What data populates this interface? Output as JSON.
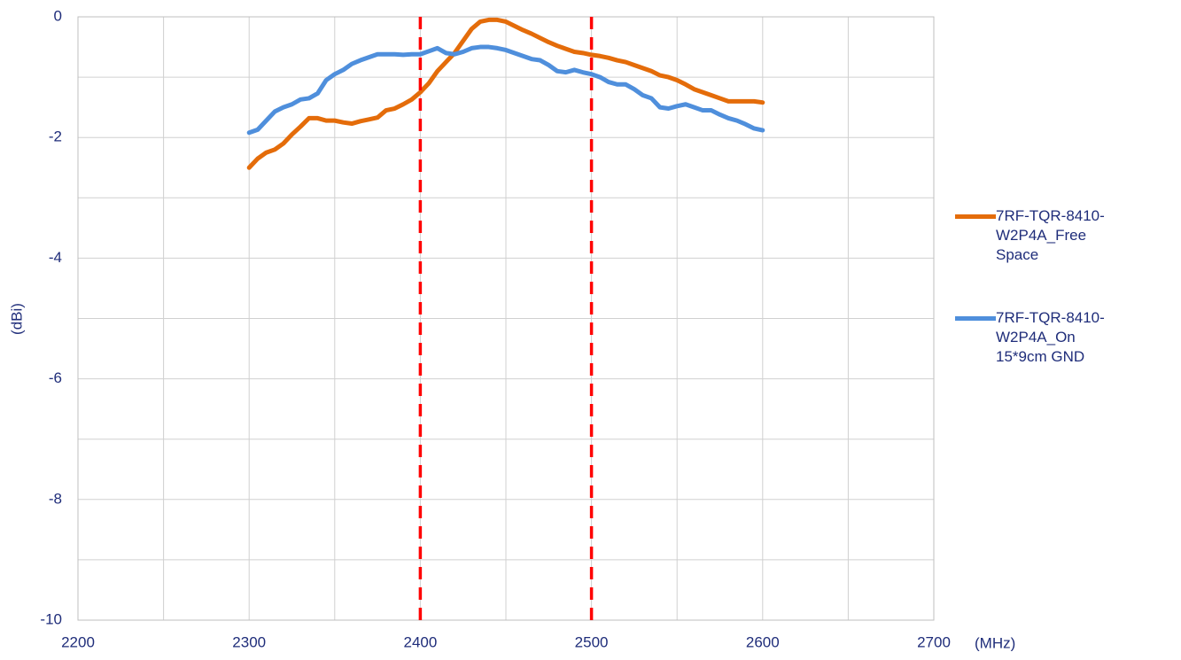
{
  "chart_data": {
    "type": "line",
    "x_label": "(MHz)",
    "y_label": "(dBi)",
    "x": [
      2300,
      2305,
      2310,
      2315,
      2320,
      2325,
      2330,
      2335,
      2340,
      2345,
      2350,
      2355,
      2360,
      2365,
      2370,
      2375,
      2380,
      2385,
      2390,
      2395,
      2400,
      2405,
      2410,
      2415,
      2420,
      2425,
      2430,
      2435,
      2440,
      2445,
      2450,
      2455,
      2460,
      2465,
      2470,
      2475,
      2480,
      2485,
      2490,
      2495,
      2500,
      2505,
      2510,
      2515,
      2520,
      2525,
      2530,
      2535,
      2540,
      2545,
      2550,
      2555,
      2560,
      2565,
      2570,
      2575,
      2580,
      2585,
      2590,
      2595,
      2600
    ],
    "series": [
      {
        "name": "7RF-TQR-8410-W2P4A_Free Space",
        "color": "#e46c0a",
        "values": [
          -2.5,
          -2.35,
          -2.25,
          -2.2,
          -2.1,
          -1.95,
          -1.82,
          -1.68,
          -1.68,
          -1.72,
          -1.72,
          -1.75,
          -1.77,
          -1.73,
          -1.7,
          -1.67,
          -1.55,
          -1.52,
          -1.45,
          -1.37,
          -1.25,
          -1.1,
          -0.9,
          -0.75,
          -0.6,
          -0.4,
          -0.2,
          -0.08,
          -0.05,
          -0.05,
          -0.08,
          -0.15,
          -0.22,
          -0.28,
          -0.35,
          -0.42,
          -0.48,
          -0.53,
          -0.58,
          -0.6,
          -0.63,
          -0.65,
          -0.68,
          -0.72,
          -0.75,
          -0.8,
          -0.85,
          -0.9,
          -0.97,
          -1.0,
          -1.05,
          -1.12,
          -1.2,
          -1.25,
          -1.3,
          -1.35,
          -1.4,
          -1.4,
          -1.4,
          -1.4,
          -1.42
        ]
      },
      {
        "name": "7RF-TQR-8410-W2P4A_On 15*9cm GND",
        "color": "#4f8fdc",
        "values": [
          -1.92,
          -1.87,
          -1.72,
          -1.57,
          -1.5,
          -1.45,
          -1.37,
          -1.35,
          -1.27,
          -1.05,
          -0.95,
          -0.88,
          -0.78,
          -0.72,
          -0.67,
          -0.62,
          -0.62,
          -0.62,
          -0.63,
          -0.62,
          -0.62,
          -0.57,
          -0.52,
          -0.6,
          -0.62,
          -0.58,
          -0.52,
          -0.5,
          -0.5,
          -0.52,
          -0.55,
          -0.6,
          -0.65,
          -0.7,
          -0.72,
          -0.8,
          -0.9,
          -0.92,
          -0.88,
          -0.92,
          -0.95,
          -1.0,
          -1.08,
          -1.12,
          -1.12,
          -1.2,
          -1.3,
          -1.35,
          -1.5,
          -1.52,
          -1.48,
          -1.45,
          -1.5,
          -1.55,
          -1.55,
          -1.62,
          -1.68,
          -1.72,
          -1.78,
          -1.85,
          -1.88
        ]
      }
    ],
    "xlim": [
      2200,
      2700
    ],
    "xticks": [
      2200,
      2300,
      2400,
      2500,
      2600,
      2700
    ],
    "ylim": [
      -10,
      0
    ],
    "yticks": [
      0,
      -2,
      -4,
      -6,
      -8,
      -10
    ],
    "x_minor_grid": [
      2250,
      2350,
      2450,
      2550,
      2650
    ],
    "y_minor_grid": [
      -1,
      -3,
      -5,
      -7,
      -9
    ],
    "grid": true,
    "legend": "right",
    "vlines": {
      "color": "#ff0000",
      "values": [
        2400,
        2500
      ]
    }
  }
}
